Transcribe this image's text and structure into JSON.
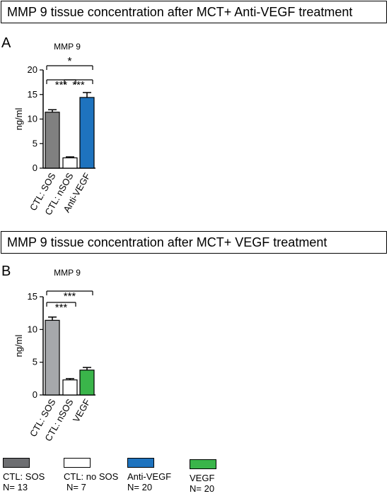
{
  "panels": {
    "a": {
      "letter": "A",
      "banner": "MMP 9 tissue concentration after MCT+ Anti-VEGF treatment"
    },
    "b": {
      "letter": "B",
      "banner": "MMP 9 tissue concentration after MCT+ VEGF treatment"
    }
  },
  "chart_data": [
    {
      "type": "bar",
      "title": "MMP 9",
      "ylabel": "ng/ml",
      "ylim": [
        0,
        20
      ],
      "yticks": [
        "0",
        "5",
        "10",
        "15",
        "20"
      ],
      "categories": [
        "CTL: SOS",
        "CTL: nSOS",
        "Anti-VEGF"
      ],
      "values": [
        11.4,
        2.1,
        14.4
      ],
      "errors": [
        0.5,
        0.2,
        1.0
      ],
      "colors": [
        "#808080",
        "#ffffff",
        "#1e73be"
      ],
      "significance": [
        {
          "from": 0,
          "to": 1,
          "label": "***"
        },
        {
          "from": 1,
          "to": 2,
          "label": "***"
        },
        {
          "from": 0,
          "to": 2,
          "label": "*"
        }
      ]
    },
    {
      "type": "bar",
      "title": "MMP 9",
      "ylabel": "ng/ml",
      "ylim": [
        0,
        15
      ],
      "yticks": [
        "0",
        "5",
        "10",
        "15"
      ],
      "categories": [
        "CTL: SOS",
        "CTL: nSOS",
        "VEGF"
      ],
      "values": [
        11.4,
        2.3,
        3.8
      ],
      "errors": [
        0.5,
        0.2,
        0.4
      ],
      "colors": [
        "#a6a8ab",
        "#ffffff",
        "#3ab54a"
      ],
      "significance": [
        {
          "from": 0,
          "to": 1,
          "label": "***"
        },
        {
          "from": 0,
          "to": 2,
          "label": "***"
        }
      ]
    }
  ],
  "legend": [
    {
      "label": "CTL: SOS",
      "n": "N= 13",
      "color": "#6d6e71"
    },
    {
      "label": "CTL: no SOS",
      "n": "N= 7",
      "color": "#ffffff"
    },
    {
      "label": "Anti-VEGF",
      "n": "N= 20",
      "color": "#1e73be"
    },
    {
      "label": "VEGF",
      "n": "N= 20",
      "color": "#3ab54a"
    }
  ]
}
